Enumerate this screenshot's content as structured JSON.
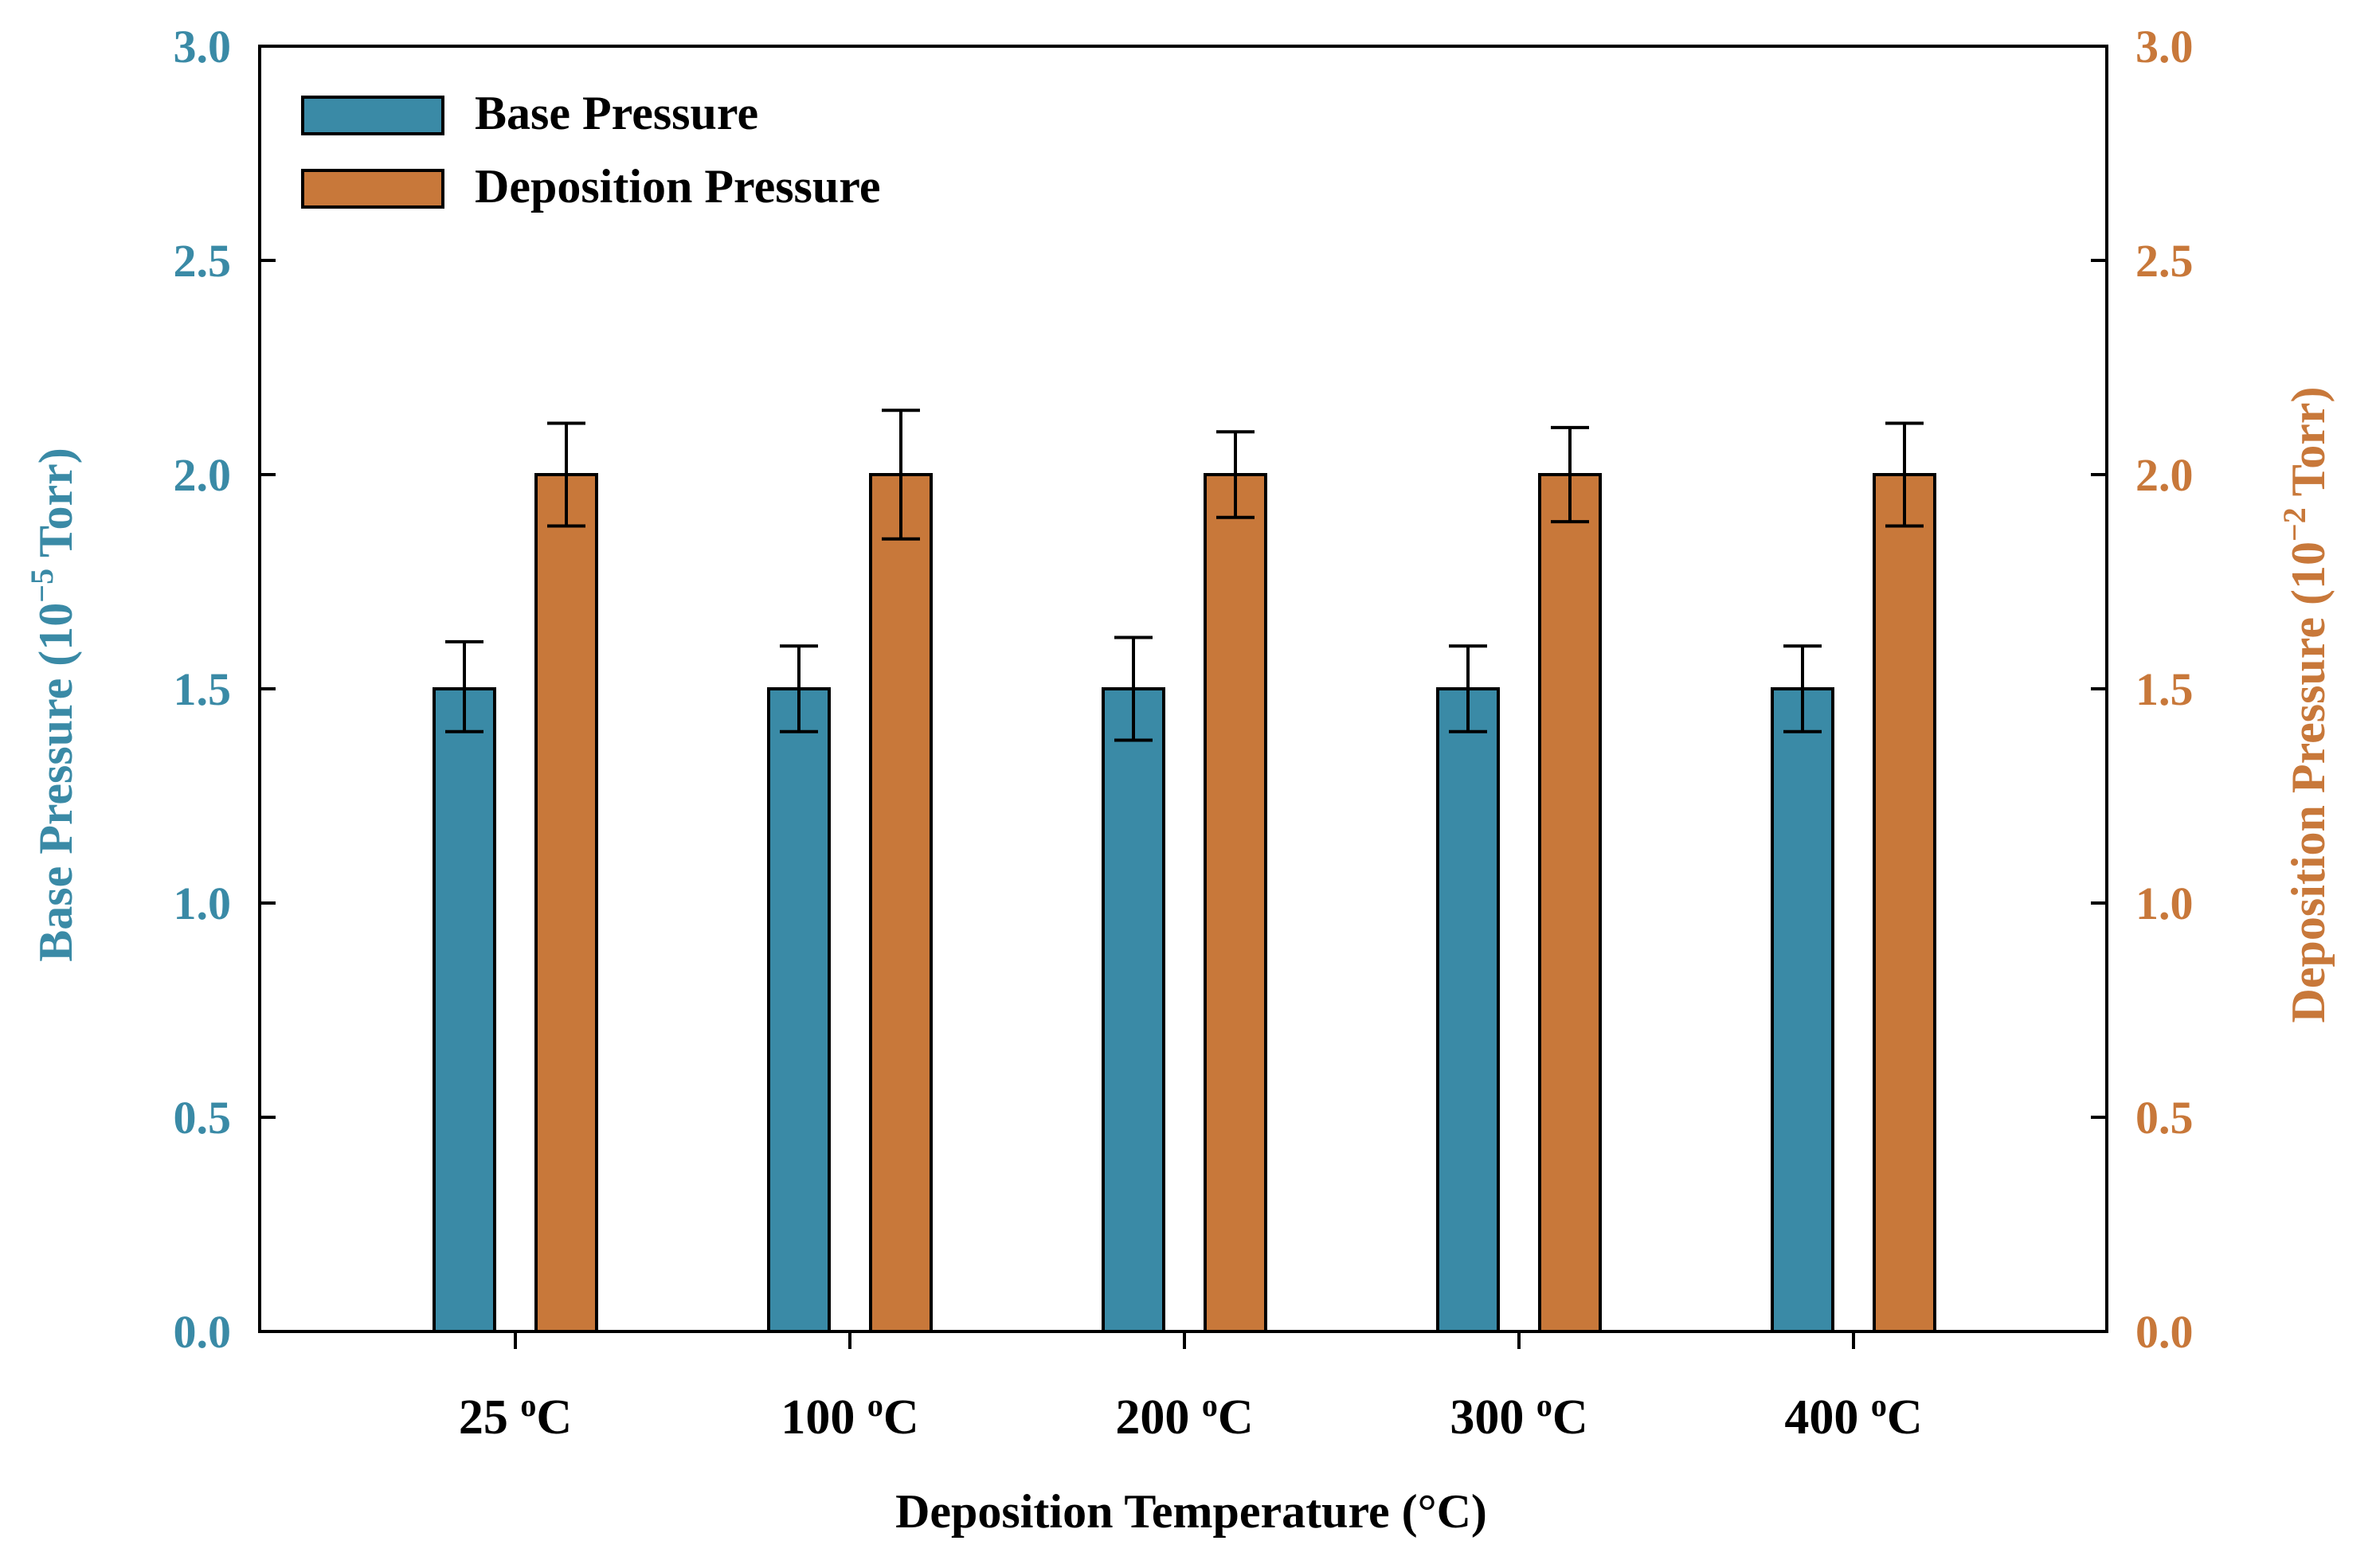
{
  "chart_data": {
    "type": "bar",
    "categories": [
      "25",
      "100",
      "200",
      "300",
      "400"
    ],
    "category_unit": "°C",
    "category_unit_superscript": "o",
    "category_unit_tail": "C",
    "series": [
      {
        "name": "Base Pressure",
        "axis": "left",
        "color": "#3a8aa6",
        "values": [
          1.5,
          1.5,
          1.5,
          1.5,
          1.5
        ],
        "error": [
          [
            0.1,
            0.11
          ],
          [
            0.1,
            0.1
          ],
          [
            0.12,
            0.12
          ],
          [
            0.1,
            0.1
          ],
          [
            0.1,
            0.1
          ]
        ]
      },
      {
        "name": "Deposition Pressure",
        "axis": "right",
        "color": "#c8783a",
        "values": [
          2.0,
          2.0,
          2.0,
          2.0,
          2.0
        ],
        "error": [
          [
            0.12,
            0.12
          ],
          [
            0.15,
            0.15
          ],
          [
            0.1,
            0.1
          ],
          [
            0.11,
            0.11
          ],
          [
            0.12,
            0.12
          ]
        ]
      }
    ],
    "xlabel": "Deposition Temperature (°C)",
    "ylabel_left": {
      "prefix": "Base Pressure  (10",
      "exponent": "−5",
      "suffix": " Torr)",
      "color": "#3a8aa6"
    },
    "ylabel_right": {
      "prefix": "Deposition Pressure  (10",
      "exponent": "−2",
      "suffix": " Torr)",
      "color": "#c8783a"
    },
    "ylim_left": [
      0,
      3.0
    ],
    "ylim_right": [
      0,
      3.0
    ],
    "yticks": [
      "0.0",
      "0.5",
      "1.0",
      "1.5",
      "2.0",
      "2.5",
      "3.0"
    ],
    "grid": false,
    "legend_position": "top-left"
  }
}
